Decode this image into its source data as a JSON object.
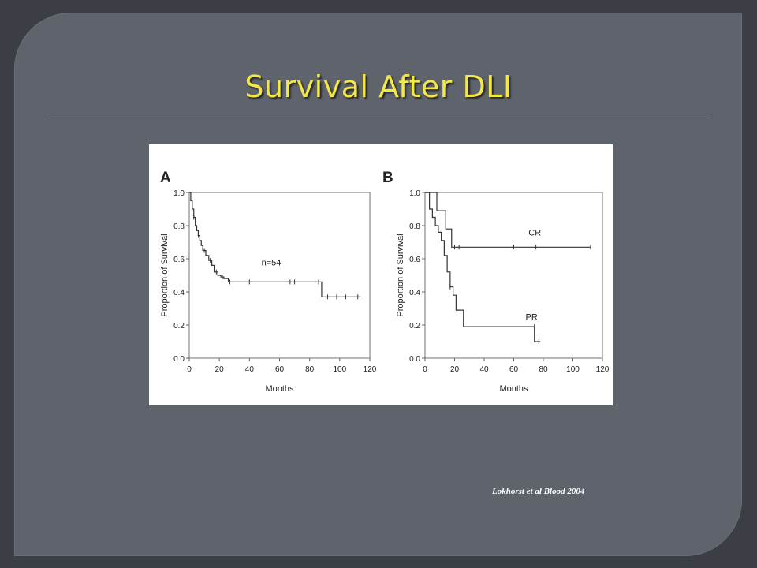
{
  "slide": {
    "title": "Survival After DLI",
    "citation": "Lokhorst et al Blood 2004"
  },
  "colors": {
    "background": "#5f636b",
    "title": "#f2e84a",
    "rule": "#c06a2c",
    "curve": "#333333"
  },
  "chart_data": [
    {
      "type": "line",
      "panel_label": "A",
      "xlabel": "Months",
      "ylabel": "Proportion of Survival",
      "xlim": [
        0,
        120
      ],
      "ylim": [
        0,
        1
      ],
      "x_ticks": [
        0,
        20,
        40,
        60,
        80,
        100,
        120
      ],
      "x_tick_labels": [
        "0",
        "20",
        "40",
        "60",
        "80",
        "100",
        "120"
      ],
      "y_ticks": [
        0,
        0.2,
        0.4,
        0.6,
        0.8,
        1.0
      ],
      "y_tick_labels": [
        "0.0",
        "0.2",
        "0.4",
        "0.6",
        "0.8",
        "1.0"
      ],
      "step": true,
      "grid": false,
      "annotations": [
        {
          "text": "n=54",
          "x": 48,
          "y": 0.56
        }
      ],
      "series": [
        {
          "x": [
            0,
            1,
            2,
            3,
            4,
            5,
            6,
            7,
            8,
            9,
            11,
            13,
            15,
            17,
            19,
            21,
            23,
            26,
            88,
            114
          ],
          "y": [
            1.0,
            0.95,
            0.9,
            0.85,
            0.8,
            0.77,
            0.74,
            0.71,
            0.68,
            0.65,
            0.62,
            0.59,
            0.56,
            0.52,
            0.5,
            0.49,
            0.48,
            0.46,
            0.37,
            0.37
          ],
          "censored": [
            [
              3,
              0.85
            ],
            [
              6,
              0.74
            ],
            [
              10,
              0.65
            ],
            [
              14,
              0.59
            ],
            [
              18,
              0.52
            ],
            [
              22,
              0.49
            ],
            [
              27,
              0.46
            ],
            [
              40,
              0.46
            ],
            [
              67,
              0.46
            ],
            [
              70,
              0.46
            ],
            [
              86,
              0.46
            ],
            [
              92,
              0.37
            ],
            [
              98,
              0.37
            ],
            [
              104,
              0.37
            ],
            [
              112,
              0.37
            ]
          ]
        }
      ]
    },
    {
      "type": "line",
      "panel_label": "B",
      "xlabel": "Months",
      "ylabel": "Proportion of Survival",
      "xlim": [
        0,
        120
      ],
      "ylim": [
        0,
        1
      ],
      "x_ticks": [
        0,
        20,
        40,
        60,
        80,
        100,
        120
      ],
      "x_tick_labels": [
        "0",
        "20",
        "40",
        "60",
        "80",
        "100",
        "120"
      ],
      "y_ticks": [
        0,
        0.2,
        0.4,
        0.6,
        0.8,
        1.0
      ],
      "y_tick_labels": [
        "0.0",
        "0.2",
        "0.4",
        "0.6",
        "0.8",
        "1.0"
      ],
      "step": true,
      "grid": false,
      "series": [
        {
          "name": "CR",
          "label_pos": [
            70,
            0.74
          ],
          "x": [
            0,
            8,
            14,
            18,
            112
          ],
          "y": [
            1.0,
            0.89,
            0.78,
            0.67,
            0.67
          ],
          "censored": [
            [
              20,
              0.67
            ],
            [
              23,
              0.67
            ],
            [
              60,
              0.67
            ],
            [
              75,
              0.67
            ],
            [
              112,
              0.67
            ]
          ]
        },
        {
          "name": "PR",
          "label_pos": [
            68,
            0.23
          ],
          "x": [
            0,
            3,
            5,
            7,
            9,
            11,
            13,
            15,
            17,
            19,
            21,
            26,
            74,
            78
          ],
          "y": [
            1.0,
            0.9,
            0.85,
            0.8,
            0.76,
            0.71,
            0.62,
            0.52,
            0.43,
            0.38,
            0.29,
            0.19,
            0.1,
            0.1
          ],
          "censored": [
            [
              17,
              0.43
            ],
            [
              74,
              0.19
            ],
            [
              77,
              0.1
            ]
          ]
        }
      ]
    }
  ]
}
